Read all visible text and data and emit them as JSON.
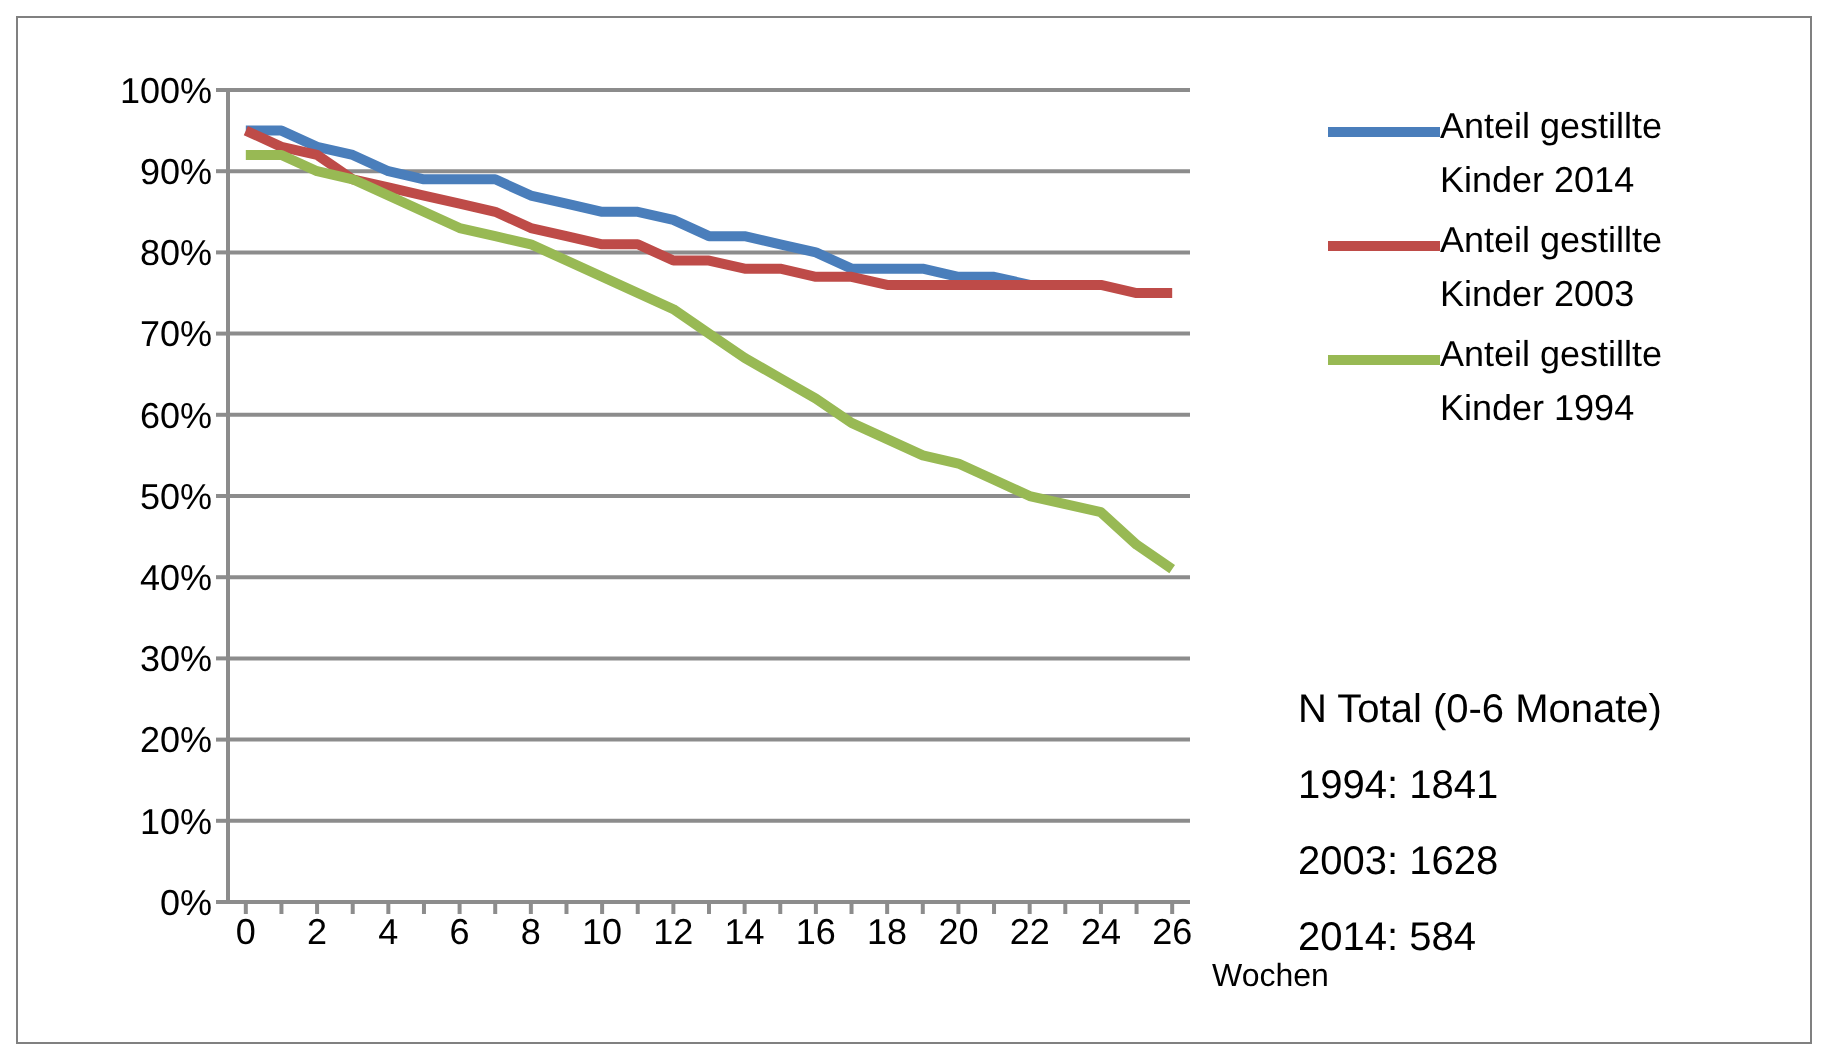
{
  "chart_data": {
    "type": "line",
    "xlabel": "Wochen",
    "x": [
      0,
      1,
      2,
      3,
      4,
      5,
      6,
      7,
      8,
      9,
      10,
      11,
      12,
      13,
      14,
      15,
      16,
      17,
      18,
      19,
      20,
      21,
      22,
      23,
      24,
      25,
      26
    ],
    "xlim": [
      -0.5,
      26.5
    ],
    "xticks": [
      0,
      {
        "value": 1,
        "label": null
      },
      2,
      {
        "value": 3,
        "label": null
      },
      4,
      {
        "value": 5,
        "label": null
      },
      6,
      {
        "value": 7,
        "label": null
      },
      8,
      {
        "value": 9,
        "label": null
      },
      10,
      {
        "value": 11,
        "label": null
      },
      12,
      {
        "value": 13,
        "label": null
      },
      14,
      {
        "value": 15,
        "label": null
      },
      16,
      {
        "value": 17,
        "label": null
      },
      18,
      {
        "value": 19,
        "label": null
      },
      20,
      {
        "value": 21,
        "label": null
      },
      22,
      {
        "value": 23,
        "label": null
      },
      24,
      {
        "value": 25,
        "label": null
      },
      26
    ],
    "series": [
      {
        "name": "Anteil gestillte Kinder 2014",
        "color": "#4a7ebb",
        "values": [
          0.95,
          0.95,
          0.93,
          0.92,
          0.9,
          0.89,
          0.89,
          0.89,
          0.87,
          0.86,
          0.85,
          0.85,
          0.84,
          0.82,
          0.82,
          0.81,
          0.8,
          0.78,
          0.78,
          0.78,
          0.77,
          0.77,
          0.76,
          null,
          null,
          null,
          null
        ]
      },
      {
        "name": "Anteil gestillte Kinder 2003",
        "color": "#be4b48",
        "values": [
          0.95,
          0.93,
          0.92,
          0.89,
          0.88,
          0.87,
          0.86,
          0.85,
          0.83,
          0.82,
          0.81,
          0.81,
          0.79,
          0.79,
          0.78,
          0.78,
          0.77,
          0.77,
          0.76,
          0.76,
          0.76,
          0.76,
          0.76,
          0.76,
          0.76,
          0.75,
          0.75
        ]
      },
      {
        "name": "Anteil gestillte Kinder 1994",
        "color": "#98b954",
        "values": [
          0.92,
          0.92,
          0.9,
          0.89,
          0.87,
          0.85,
          0.83,
          0.82,
          0.81,
          0.79,
          0.77,
          0.75,
          0.73,
          0.7,
          0.67,
          0.645,
          0.62,
          0.59,
          0.57,
          0.55,
          0.54,
          0.52,
          0.5,
          0.49,
          0.48,
          0.44,
          0.41
        ]
      }
    ],
    "ylim": [
      0,
      1
    ],
    "yticks": [
      {
        "value": 0,
        "label": "0%"
      },
      {
        "value": 0.1,
        "label": "10%"
      },
      {
        "value": 0.2,
        "label": "20%"
      },
      {
        "value": 0.3,
        "label": "30%"
      },
      {
        "value": 0.4,
        "label": "40%"
      },
      {
        "value": 0.5,
        "label": "50%"
      },
      {
        "value": 0.6,
        "label": "60%"
      },
      {
        "value": 0.7,
        "label": "70%"
      },
      {
        "value": 0.8,
        "label": "80%"
      },
      {
        "value": 0.9,
        "label": "90%"
      },
      {
        "value": 1,
        "label": "100%"
      }
    ],
    "grid": "y",
    "legend": "right",
    "marker": "none",
    "line_style": "solid",
    "annotations": [
      "N Total (0-6 Monate)",
      "1994: 1841",
      "2003: 1628",
      "2014: 584"
    ]
  }
}
